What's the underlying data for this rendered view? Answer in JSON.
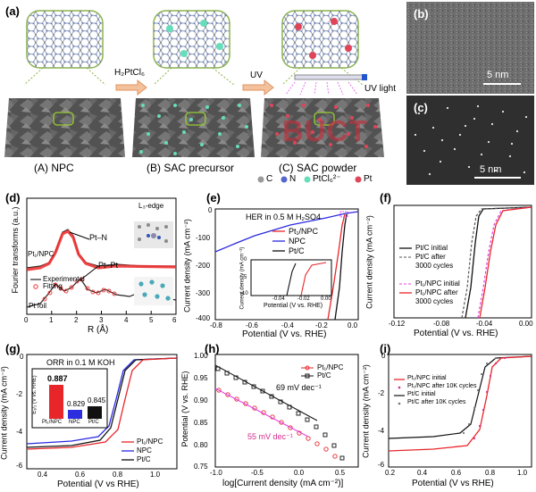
{
  "panel_a": {
    "label": "(a)",
    "arrow1": "H₂PtCl₆",
    "arrow2": "UV",
    "uv_light": "UV light",
    "stamp": "BUCT",
    "steps": [
      "(A) NPC",
      "(B) SAC precursor",
      "(C) SAC powder"
    ],
    "legend": [
      "C",
      "N",
      "PtCl₆²⁻",
      "Pt"
    ],
    "colors": {
      "C": "#9a9a9a",
      "N": "#5566cc",
      "PtCl": "#66ddbb",
      "Pt": "#e04458"
    }
  },
  "panel_b": {
    "label": "(b)",
    "scale": "5 nm"
  },
  "panel_c": {
    "label": "(c)",
    "scale": "5 nm"
  },
  "panel_d": {
    "label": "(d)",
    "ylabel": "Fourier transforms (a.u.)",
    "xlabel": "R (Å)",
    "edge": "L₃-edge",
    "peak1": "Pt–N",
    "peak2": "Pt–Pt",
    "sample1": "Pt₁/NPC",
    "sample2": "Pt foil",
    "legend_exp": "Experimental",
    "legend_fit": "Fitting",
    "xticks": [
      "0",
      "1",
      "2",
      "3",
      "4",
      "5",
      "6"
    ]
  },
  "panel_e": {
    "label": "(e)",
    "title": "HER in 0.5 M H₂SO4",
    "ylabel": "Current density (mA cm⁻²)",
    "xlabel": "Potential (V vs. RHE)",
    "legend": [
      "Pt₁/NPC",
      "NPC",
      "Pt/C"
    ],
    "xticks": [
      "-0.8",
      "-0.6",
      "-0.4",
      "-0.2",
      "0.0"
    ],
    "yticks": [
      "0",
      "-100",
      "-200",
      "-300",
      "-400"
    ],
    "inset_ylabel": "Current density (mA cm⁻²)",
    "inset_xticks": [
      "-0.04",
      "-0.02",
      "0.00"
    ],
    "inset_yticks": [
      "0",
      "-5",
      "-10"
    ]
  },
  "panel_f": {
    "label": "(f)",
    "ylabel": "Current density (mA cm⁻²)",
    "xlabel": "Potential (V vs. RHE)",
    "legend": [
      "Pt/C initial",
      "Pt/C after",
      "3000 cycles",
      "Pt₁/NPC initial",
      "Pt₁/NPC after",
      "3000 cycles"
    ],
    "xticks": [
      "-0.12",
      "-0.08",
      "-0.04",
      "0.00"
    ]
  },
  "panel_g": {
    "label": "(g)",
    "title": "ORR in 0.1 M KOH",
    "ylabel": "Current density (mA cm⁻²)",
    "xlabel": "Potential (V vs RHE)",
    "inset_ylabel": "E₁/₂ (V vs. RHE)",
    "inset_bars": [
      {
        "name": "Pt₁/NPC",
        "value": "0.887",
        "color": "#e8262a"
      },
      {
        "name": "NPC",
        "value": "0.829",
        "color": "#2d2de0"
      },
      {
        "name": "Pt/C",
        "value": "0.845",
        "color": "#111111"
      }
    ],
    "legend": [
      "Pt₁/NPC",
      "NPC",
      "Pt/C"
    ],
    "xticks": [
      "0.4",
      "0.6",
      "0.8",
      "1.0"
    ],
    "yticks": [
      "0",
      "-1",
      "-2",
      "-3",
      "-4",
      "-5",
      "-6"
    ]
  },
  "panel_h": {
    "label": "(h)",
    "ylabel": "Potential (V vs. RHE)",
    "xlabel": "log[Current density (mA cm⁻²)]",
    "legend": [
      "Pt₁/NPC",
      "Pt/C"
    ],
    "slope1": "69 mV dec⁻¹",
    "slope2": "55 mV dec⁻¹",
    "xticks": [
      "-1.0",
      "-0.5",
      "0.0",
      "0.5"
    ],
    "yticks": [
      "1.00",
      "0.95",
      "0.90",
      "0.85",
      "0.80",
      "0.75"
    ]
  },
  "panel_i": {
    "label": "(i)",
    "ylabel": "Current density (mA cm⁻²)",
    "xlabel": "Potential (V vs RHE)",
    "legend": [
      "Pt₁/NPC initial",
      "Pt₁/NPC after 10K cycles",
      "Pt/C initial",
      "Pt/C after 10K cycles"
    ],
    "xticks": [
      "0.2",
      "0.4",
      "0.6",
      "0.8",
      "1.0"
    ],
    "yticks": [
      "0",
      "-1",
      "-2",
      "-3",
      "-4",
      "-5",
      "-6"
    ]
  }
}
